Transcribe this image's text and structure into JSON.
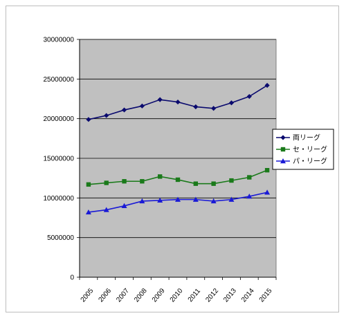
{
  "chart_data": {
    "type": "line",
    "title": "",
    "xlabel": "",
    "ylabel": "",
    "categories": [
      "2005",
      "2006",
      "2007",
      "2008",
      "2009",
      "2010",
      "2011",
      "2012",
      "2013",
      "2014",
      "2015"
    ],
    "ylim": [
      0,
      30000000
    ],
    "yticks": [
      "0",
      "5000000",
      "10000000",
      "15000000",
      "20000000",
      "25000000",
      "30000000"
    ],
    "grid": "horizontal",
    "legend_position": "right",
    "plot_background": "#c0c0c0",
    "series": [
      {
        "name": "両リーグ",
        "color": "#0a0a6e",
        "marker": "diamond",
        "values": [
          19900000,
          20400000,
          21100000,
          21600000,
          22400000,
          22100000,
          21500000,
          21300000,
          22000000,
          22800000,
          24200000
        ]
      },
      {
        "name": "セ・リーグ",
        "color": "#1a7a1a",
        "marker": "square",
        "values": [
          11700000,
          11900000,
          12100000,
          12100000,
          12700000,
          12300000,
          11800000,
          11800000,
          12200000,
          12600000,
          13500000
        ]
      },
      {
        "name": "パ・リーグ",
        "color": "#1a1ad6",
        "marker": "triangle",
        "values": [
          8200000,
          8500000,
          9000000,
          9600000,
          9700000,
          9800000,
          9800000,
          9600000,
          9800000,
          10200000,
          10700000
        ]
      }
    ]
  }
}
